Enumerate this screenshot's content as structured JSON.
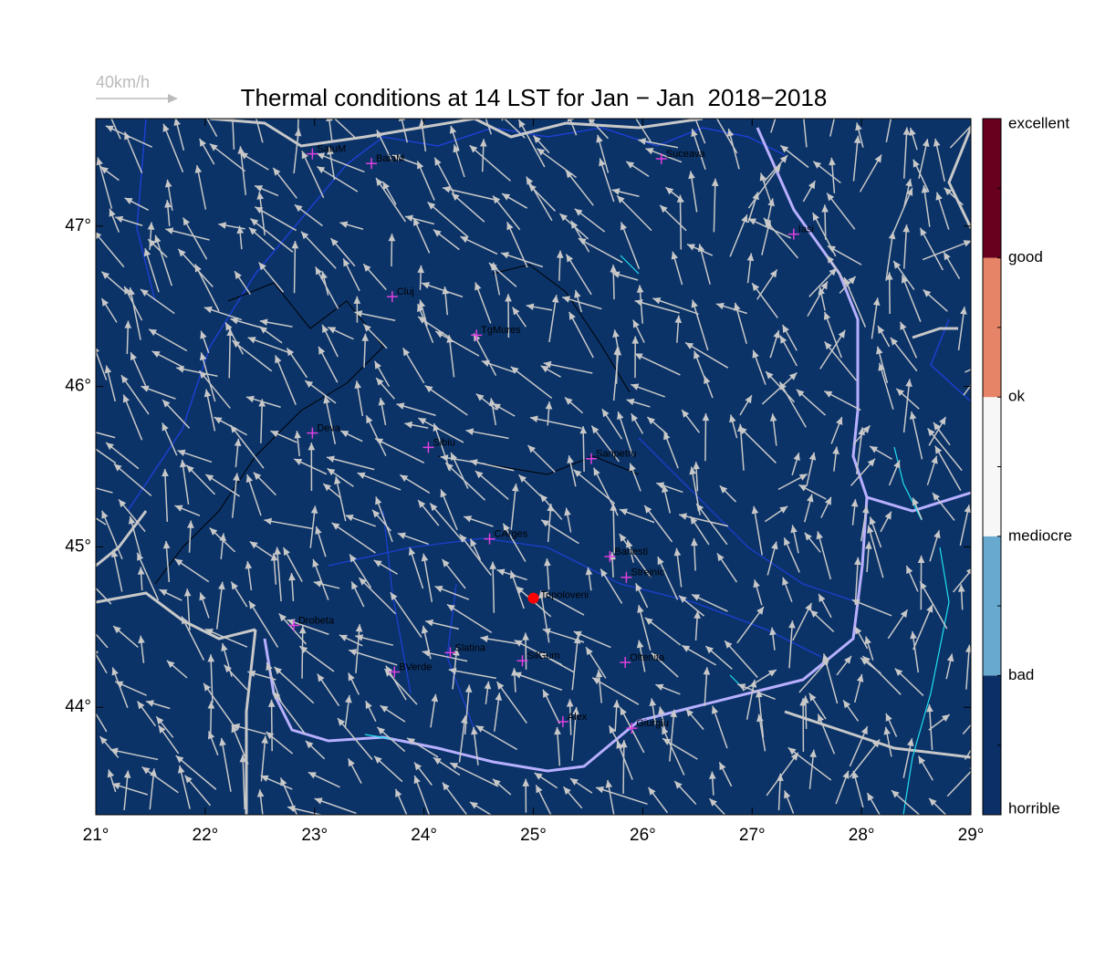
{
  "map": {
    "title": "Thermal conditions at 14 LST for Jan − Jan  2018−2018",
    "scale_label": "40km/h",
    "background": "#0b3368",
    "xlim": [
      21,
      29
    ],
    "ylim": [
      43.33,
      47.67
    ],
    "xticks": [
      {
        "value": 21,
        "label": "21°"
      },
      {
        "value": 22,
        "label": "22°"
      },
      {
        "value": 23,
        "label": "23°"
      },
      {
        "value": 24,
        "label": "24°"
      },
      {
        "value": 25,
        "label": "25°"
      },
      {
        "value": 26,
        "label": "26°"
      },
      {
        "value": 27,
        "label": "27°"
      },
      {
        "value": 28,
        "label": "28°"
      },
      {
        "value": 29,
        "label": "29°"
      }
    ],
    "yticks": [
      {
        "value": 44,
        "label": "44°"
      },
      {
        "value": 45,
        "label": "45°"
      },
      {
        "value": 46,
        "label": "46°"
      },
      {
        "value": 47,
        "label": "47°"
      }
    ],
    "colorbar": {
      "labels": [
        "horrible",
        "bad",
        "mediocre",
        "ok",
        "good",
        "excellent"
      ],
      "colors": [
        "#0b3068",
        "#67a9cf",
        "#f7f7f7",
        "#e58466",
        "#67001f"
      ]
    },
    "stations": [
      {
        "name": "SatuM",
        "lon": 22.98,
        "lat": 47.45
      },
      {
        "name": "BaiaM",
        "lon": 23.52,
        "lat": 47.39
      },
      {
        "name": "Suceava",
        "lon": 26.17,
        "lat": 47.42
      },
      {
        "name": "Iasi",
        "lon": 27.38,
        "lat": 46.95
      },
      {
        "name": "Cluj",
        "lon": 23.71,
        "lat": 46.56
      },
      {
        "name": "TgMures",
        "lon": 24.48,
        "lat": 46.32
      },
      {
        "name": "Deva",
        "lon": 22.98,
        "lat": 45.71
      },
      {
        "name": "Sibiu",
        "lon": 24.04,
        "lat": 45.62
      },
      {
        "name": "Sanpetru",
        "lon": 25.53,
        "lat": 45.55
      },
      {
        "name": "CArges",
        "lon": 24.6,
        "lat": 45.05
      },
      {
        "name": "Banesti",
        "lon": 25.7,
        "lat": 44.94
      },
      {
        "name": "Strejnic",
        "lon": 25.85,
        "lat": 44.81
      },
      {
        "name": "Drobeta",
        "lon": 22.81,
        "lat": 44.51
      },
      {
        "name": "Slatina",
        "lon": 24.24,
        "lat": 44.34
      },
      {
        "name": "SilGum",
        "lon": 24.9,
        "lat": 44.29
      },
      {
        "name": "Oltenita",
        "lon": 25.84,
        "lat": 44.28
      },
      {
        "name": "BVerde",
        "lon": 23.73,
        "lat": 44.22
      },
      {
        "name": "Alex",
        "lon": 25.27,
        "lat": 43.91
      },
      {
        "name": "Giurgiu",
        "lon": 25.9,
        "lat": 43.87
      }
    ],
    "site": {
      "name": "Topoloveni",
      "lon": 25.0,
      "lat": 44.68,
      "color": "#ff0000"
    }
  }
}
